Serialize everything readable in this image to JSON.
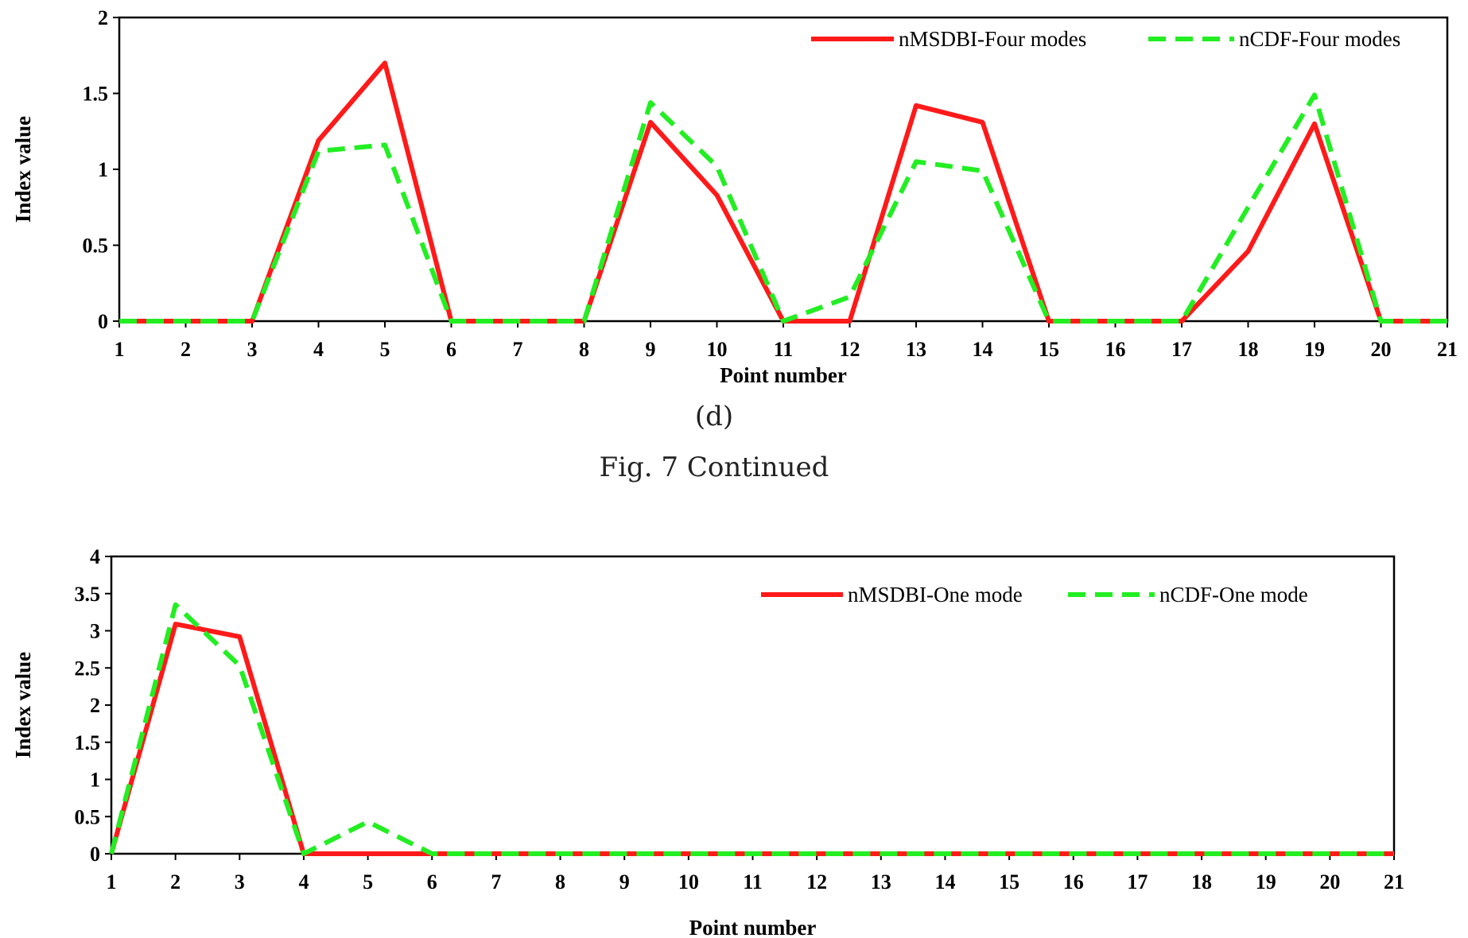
{
  "chart_data": [
    {
      "type": "line",
      "xlabel": "Point number",
      "ylabel": "Index value",
      "x": [
        1,
        2,
        3,
        4,
        5,
        6,
        7,
        8,
        9,
        10,
        11,
        12,
        13,
        14,
        15,
        16,
        17,
        18,
        19,
        20,
        21
      ],
      "ylim": [
        0,
        2
      ],
      "yticks": [
        0,
        0.5,
        1,
        1.5,
        2
      ],
      "yticklabels": [
        "0",
        "0.5",
        "1",
        "1.5",
        "2"
      ],
      "legend_position": "top-right",
      "series": [
        {
          "name": "nMSDBI-Four modes",
          "color": "#ff1a1a",
          "style": "solid",
          "values": [
            0,
            0,
            0,
            1.19,
            1.7,
            0,
            0,
            0,
            1.31,
            0.83,
            0,
            0,
            1.42,
            1.31,
            0,
            0,
            0,
            0.46,
            1.3,
            0,
            0
          ]
        },
        {
          "name": "nCDF-Four modes",
          "color": "#22ee22",
          "style": "dashed",
          "values": [
            0,
            0,
            0,
            1.12,
            1.16,
            0,
            0,
            0,
            1.44,
            1.02,
            0,
            0.16,
            1.05,
            0.99,
            0,
            0,
            0,
            0.75,
            1.49,
            0,
            0
          ]
        }
      ]
    },
    {
      "type": "line",
      "xlabel": "Point number",
      "ylabel": "Index value",
      "x": [
        1,
        2,
        3,
        4,
        5,
        6,
        7,
        8,
        9,
        10,
        11,
        12,
        13,
        14,
        15,
        16,
        17,
        18,
        19,
        20,
        21
      ],
      "ylim": [
        0,
        4
      ],
      "yticks": [
        0,
        0.5,
        1,
        1.5,
        2,
        2.5,
        3,
        3.5,
        4
      ],
      "yticklabels": [
        "0",
        "0.5",
        "1",
        "1.5",
        "2",
        "2.5",
        "3",
        "3.5",
        "4"
      ],
      "legend_position": "top-right",
      "series": [
        {
          "name": "nMSDBI-One mode",
          "color": "#ff1a1a",
          "style": "solid",
          "values": [
            0,
            3.09,
            2.92,
            0,
            0,
            0,
            0,
            0,
            0,
            0,
            0,
            0,
            0,
            0,
            0,
            0,
            0,
            0,
            0,
            0,
            0
          ]
        },
        {
          "name": "nCDF-One mode",
          "color": "#22ee22",
          "style": "dashed",
          "values": [
            0,
            3.35,
            2.53,
            0,
            0.43,
            0,
            0,
            0,
            0,
            0,
            0,
            0,
            0,
            0,
            0,
            0,
            0,
            0,
            0,
            0,
            0
          ]
        }
      ]
    }
  ],
  "captions": {
    "sub_label": "(d)",
    "figure_caption": "Fig. 7 Continued"
  }
}
